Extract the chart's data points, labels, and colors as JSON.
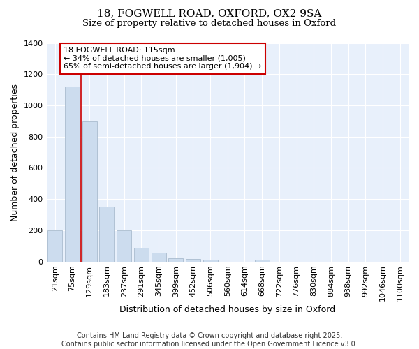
{
  "title_line1": "18, FOGWELL ROAD, OXFORD, OX2 9SA",
  "title_line2": "Size of property relative to detached houses in Oxford",
  "xlabel": "Distribution of detached houses by size in Oxford",
  "ylabel": "Number of detached properties",
  "categories": [
    "21sqm",
    "75sqm",
    "129sqm",
    "183sqm",
    "237sqm",
    "291sqm",
    "345sqm",
    "399sqm",
    "452sqm",
    "506sqm",
    "560sqm",
    "614sqm",
    "668sqm",
    "722sqm",
    "776sqm",
    "830sqm",
    "884sqm",
    "938sqm",
    "992sqm",
    "1046sqm",
    "1100sqm"
  ],
  "values": [
    198,
    1120,
    895,
    350,
    198,
    90,
    57,
    22,
    18,
    10,
    0,
    0,
    12,
    0,
    0,
    0,
    0,
    0,
    0,
    0,
    0
  ],
  "bar_color": "#ccdcee",
  "bar_edge_color": "#aabcce",
  "vline_color": "#cc0000",
  "annotation_text": "18 FOGWELL ROAD: 115sqm\n← 34% of detached houses are smaller (1,005)\n65% of semi-detached houses are larger (1,904) →",
  "annotation_box_color": "#ffffff",
  "annotation_box_edge": "#cc0000",
  "ylim": [
    0,
    1400
  ],
  "yticks": [
    0,
    200,
    400,
    600,
    800,
    1000,
    1200,
    1400
  ],
  "background_color": "#ffffff",
  "plot_background_color": "#e8f0fb",
  "footer_text": "Contains HM Land Registry data © Crown copyright and database right 2025.\nContains public sector information licensed under the Open Government Licence v3.0.",
  "grid_color": "#ffffff",
  "title_fontsize": 11,
  "subtitle_fontsize": 9.5,
  "axis_label_fontsize": 9,
  "tick_fontsize": 8,
  "annotation_fontsize": 8,
  "footer_fontsize": 7
}
